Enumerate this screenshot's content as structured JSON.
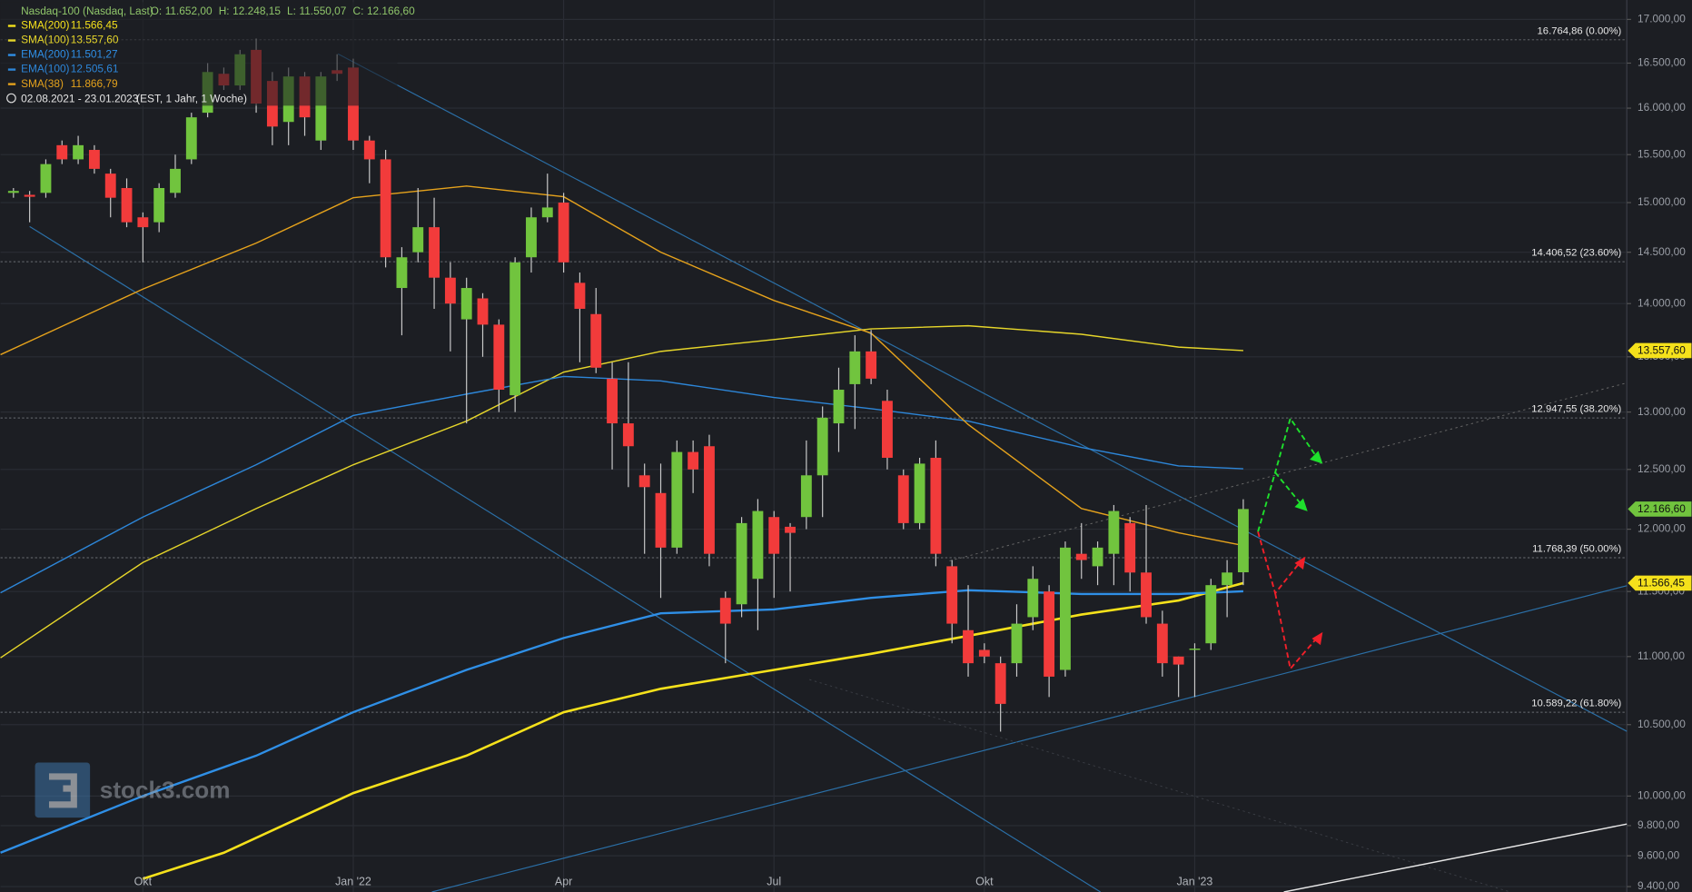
{
  "chart_data": {
    "type": "candlestick",
    "title": "Nasdaq-100 (Nasdaq, Last)",
    "ohlc_header": [
      {
        "label": "O:",
        "value": "11.652,00"
      },
      {
        "label": "H:",
        "value": "12.248,15"
      },
      {
        "label": "L:",
        "value": "11.550,07"
      },
      {
        "label": "C:",
        "value": "12.166,60"
      }
    ],
    "date_range": "02.08.2021 - 23.01.2023",
    "period_note": "(EST, 1 Jahr, 1 Woche)",
    "watermark": "stock3.com",
    "up_color": "#71c43e",
    "down_color": "#f23b3b",
    "log_scale": true,
    "grid": true,
    "xlim": [
      -0.8,
      99.7
    ],
    "xticks": [
      {
        "value": 8,
        "label": "Okt"
      },
      {
        "value": 21,
        "label": "Jan '22"
      },
      {
        "value": 34,
        "label": "Apr"
      },
      {
        "value": 47,
        "label": "Jul"
      },
      {
        "value": 60,
        "label": "Okt"
      },
      {
        "value": 73,
        "label": "Jan '23"
      }
    ],
    "ylim": [
      9400,
      17000
    ],
    "yticks": [
      {
        "value": 9400,
        "label": "9.400,00"
      },
      {
        "value": 9600,
        "label": "9.600,00"
      },
      {
        "value": 9800,
        "label": "9.800,00"
      },
      {
        "value": 10000,
        "label": "10.000,00"
      },
      {
        "value": 10500,
        "label": "10.500,00"
      },
      {
        "value": 11000,
        "label": "11.000,00"
      },
      {
        "value": 11500,
        "label": "11.500,00"
      },
      {
        "value": 12000,
        "label": "12.000,00"
      },
      {
        "value": 12500,
        "label": "12.500,00"
      },
      {
        "value": 13000,
        "label": "13.000,00"
      },
      {
        "value": 13500,
        "label": "13.500,00"
      },
      {
        "value": 14000,
        "label": "14.000,00"
      },
      {
        "value": 14500,
        "label": "14.500,00"
      },
      {
        "value": 15000,
        "label": "15.000,00"
      },
      {
        "value": 15500,
        "label": "15.500,00"
      },
      {
        "value": 16000,
        "label": "16.000,00"
      },
      {
        "value": 16500,
        "label": "16.500,00"
      },
      {
        "value": 17000,
        "label": "17.000,00"
      }
    ],
    "open": [
      15100,
      15080,
      15100,
      15600,
      15450,
      15550,
      15300,
      15150,
      14850,
      14800,
      15100,
      15450,
      15950,
      16380,
      16250,
      16650,
      16300,
      15850,
      16350,
      15650,
      16420,
      16450,
      15650,
      15450,
      14150,
      14500,
      14750,
      14250,
      13850,
      14050,
      13800,
      13150,
      14450,
      14850,
      15000,
      14200,
      13900,
      13300,
      12900,
      12450,
      12300,
      11850,
      12650,
      12700,
      11450,
      11400,
      11600,
      12100,
      12020,
      12100,
      12450,
      12900,
      13250,
      13550,
      13100,
      12450,
      12050,
      12600,
      11700,
      11200,
      11050,
      10950,
      10950,
      11300,
      11500,
      10900,
      11800,
      11700,
      11800,
      12050,
      11650,
      11250,
      11000,
      11050,
      11100,
      11550,
      11652
    ],
    "high": [
      15150,
      15120,
      15450,
      15650,
      15700,
      15600,
      15350,
      15250,
      14900,
      15200,
      15500,
      15950,
      16500,
      16450,
      16650,
      16780,
      16400,
      16450,
      16400,
      16400,
      16600,
      16550,
      15700,
      15550,
      14550,
      15150,
      15050,
      14400,
      14250,
      14100,
      13850,
      14450,
      14950,
      15300,
      15100,
      14300,
      14150,
      13450,
      13450,
      12550,
      12550,
      12750,
      12750,
      12800,
      11500,
      12100,
      12250,
      12150,
      12050,
      12750,
      13050,
      13400,
      13700,
      13750,
      13200,
      12500,
      12600,
      12750,
      11750,
      11550,
      11100,
      11000,
      11400,
      11700,
      11550,
      11900,
      12050,
      11900,
      12200,
      12100,
      12200,
      11350,
      11000,
      11100,
      11600,
      11750,
      12248.15
    ],
    "low": [
      15050,
      14800,
      15050,
      15400,
      15400,
      15300,
      14850,
      14750,
      14400,
      14700,
      15050,
      15400,
      15900,
      16200,
      16200,
      15950,
      15600,
      15600,
      15700,
      15550,
      16300,
      15550,
      15200,
      14350,
      13700,
      14400,
      13950,
      13550,
      12900,
      13500,
      13000,
      13000,
      14300,
      14800,
      14300,
      13450,
      13350,
      12500,
      12350,
      11800,
      11450,
      11800,
      12300,
      11700,
      10950,
      11300,
      11200,
      11450,
      11500,
      12000,
      12100,
      12650,
      12850,
      13250,
      12500,
      12000,
      12000,
      11700,
      11100,
      10850,
      10950,
      10450,
      10850,
      11200,
      10700,
      10850,
      11600,
      11550,
      11550,
      11500,
      11250,
      10850,
      10700,
      10700,
      11050,
      11300,
      11550.07
    ],
    "close": [
      15120,
      15060,
      15400,
      15450,
      15600,
      15350,
      15050,
      14800,
      14750,
      15150,
      15350,
      15900,
      16400,
      16250,
      16600,
      16050,
      15800,
      16350,
      15900,
      16350,
      16380,
      15650,
      15450,
      14450,
      14450,
      14750,
      14250,
      14000,
      14150,
      13800,
      13200,
      14400,
      14850,
      14950,
      14400,
      13950,
      13400,
      12900,
      12700,
      12350,
      11850,
      12650,
      12500,
      11800,
      11250,
      12050,
      12150,
      11800,
      11970,
      12450,
      12950,
      13200,
      13550,
      13300,
      12600,
      12050,
      12550,
      11800,
      11250,
      10950,
      11000,
      10650,
      11250,
      11600,
      10850,
      11850,
      11750,
      11850,
      12150,
      11650,
      11300,
      10950,
      10940,
      11060,
      11550,
      11650,
      12166.6
    ],
    "indicators": [
      {
        "name": "SMA(200)",
        "color": "#f5e11b",
        "width": 2.2,
        "value": 11566.45,
        "value_label": "11.566,45",
        "x": [
          8,
          13,
          21,
          28,
          34,
          40,
          47,
          53,
          60,
          66,
          72,
          76
        ],
        "values": [
          9450,
          9620,
          10020,
          10280,
          10590,
          10760,
          10900,
          11020,
          11180,
          11320,
          11430,
          11566.45
        ]
      },
      {
        "name": "SMA(100)",
        "color": "#e6d62a",
        "width": 1.2,
        "value": 13557.6,
        "value_label": "13.557,60",
        "x": [
          -0.8,
          8,
          15,
          21,
          28,
          34,
          40,
          47,
          53,
          59,
          66,
          72,
          76
        ],
        "values": [
          10990,
          11730,
          12170,
          12540,
          12920,
          13360,
          13550,
          13660,
          13760,
          13790,
          13710,
          13590,
          13557.6
        ]
      },
      {
        "name": "EMA(200)",
        "color": "#2f8fe6",
        "width": 2,
        "value": 11501.27,
        "value_label": "11.501,27",
        "x": [
          -0.8,
          8,
          15,
          21,
          28,
          34,
          40,
          47,
          53,
          59,
          66,
          72,
          76
        ],
        "values": [
          9620,
          10000,
          10280,
          10590,
          10900,
          11140,
          11330,
          11360,
          11450,
          11510,
          11480,
          11480,
          11501.27
        ]
      },
      {
        "name": "EMA(100)",
        "color": "#2d86d8",
        "width": 1.2,
        "value": 12505.61,
        "value_label": "12.505,61",
        "x": [
          -0.8,
          8,
          15,
          21,
          28,
          34,
          40,
          47,
          53,
          59,
          66,
          72,
          76
        ],
        "values": [
          11490,
          12100,
          12540,
          12970,
          13160,
          13320,
          13280,
          13130,
          13030,
          12920,
          12690,
          12530,
          12505.61
        ]
      },
      {
        "name": "SMA(38)",
        "color": "#e5a21c",
        "width": 1.2,
        "value": 11866.79,
        "value_label": "11.866,79",
        "x": [
          -0.8,
          8,
          15,
          21,
          28,
          34,
          40,
          47,
          53,
          59,
          66,
          72,
          76
        ],
        "values": [
          13520,
          14140,
          14590,
          15050,
          15170,
          15060,
          14500,
          14030,
          13720,
          12890,
          12170,
          11970,
          11866.79
        ]
      }
    ],
    "fib_levels": [
      {
        "value": 16764.86,
        "label": "16.764,86 (0.00%)"
      },
      {
        "value": 14406.52,
        "label": "14.406,52 (23.60%)"
      },
      {
        "value": 12947.55,
        "label": "12.947,55 (38.20%)"
      },
      {
        "value": 11768.39,
        "label": "11.768,39 (50.00%)"
      },
      {
        "value": 10589.22,
        "label": "10.589,22 (61.80%)"
      }
    ],
    "price_tags": [
      {
        "value": 13557.6,
        "label": "13.557,60",
        "color": "#f5e11b"
      },
      {
        "value": 12166.6,
        "label": "12.166,60",
        "color": "#71c43e"
      },
      {
        "value": 11566.45,
        "label": "11.566,45",
        "color": "#f5e11b"
      }
    ]
  }
}
